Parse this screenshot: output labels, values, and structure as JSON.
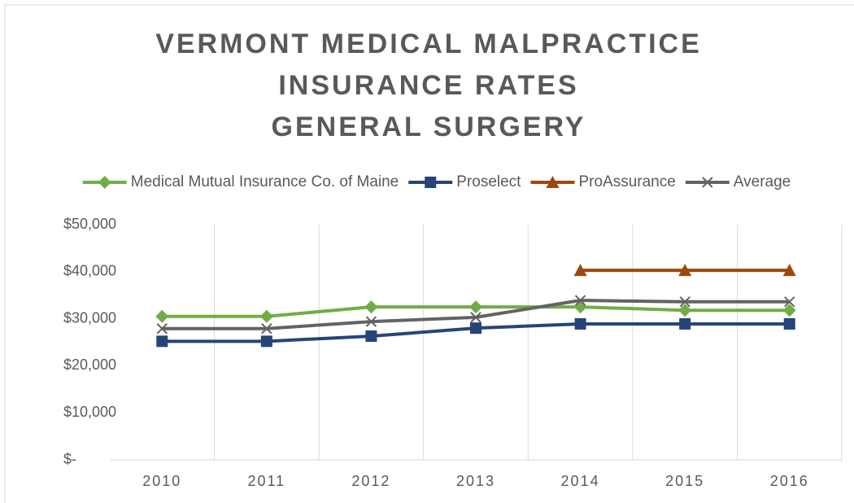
{
  "chart_data": {
    "type": "line",
    "title": [
      "VERMONT MEDICAL MALPRACTICE",
      "INSURANCE RATES",
      "GENERAL SURGERY"
    ],
    "categories": [
      "2010",
      "2011",
      "2012",
      "2013",
      "2014",
      "2015",
      "2016"
    ],
    "series": [
      {
        "name": "Medical Mutual Insurance Co. of Maine",
        "color": "#70ad47",
        "marker": "diamond",
        "values": [
          30500,
          30500,
          32500,
          32500,
          32500,
          31800,
          31800
        ]
      },
      {
        "name": "Proselect",
        "color": "#264478",
        "marker": "square",
        "values": [
          25200,
          25200,
          26300,
          28000,
          28900,
          28900,
          28900
        ]
      },
      {
        "name": "ProAssurance",
        "color": "#9e480e",
        "marker": "triangle",
        "values": [
          null,
          null,
          null,
          null,
          40300,
          40300,
          40300
        ]
      },
      {
        "name": "Average",
        "color": "#636363",
        "marker": "x",
        "values": [
          27900,
          27900,
          29400,
          30300,
          33900,
          33600,
          33600
        ]
      }
    ],
    "ylim": [
      0,
      50000
    ],
    "yticks": [
      {
        "value": 0,
        "label": "$-"
      },
      {
        "value": 10000,
        "label": "$10,000"
      },
      {
        "value": 20000,
        "label": "$20,000"
      },
      {
        "value": 30000,
        "label": "$30,000"
      },
      {
        "value": 40000,
        "label": "$40,000"
      },
      {
        "value": 50000,
        "label": "$50,000"
      }
    ],
    "grid": "vertical",
    "legend": "top"
  }
}
